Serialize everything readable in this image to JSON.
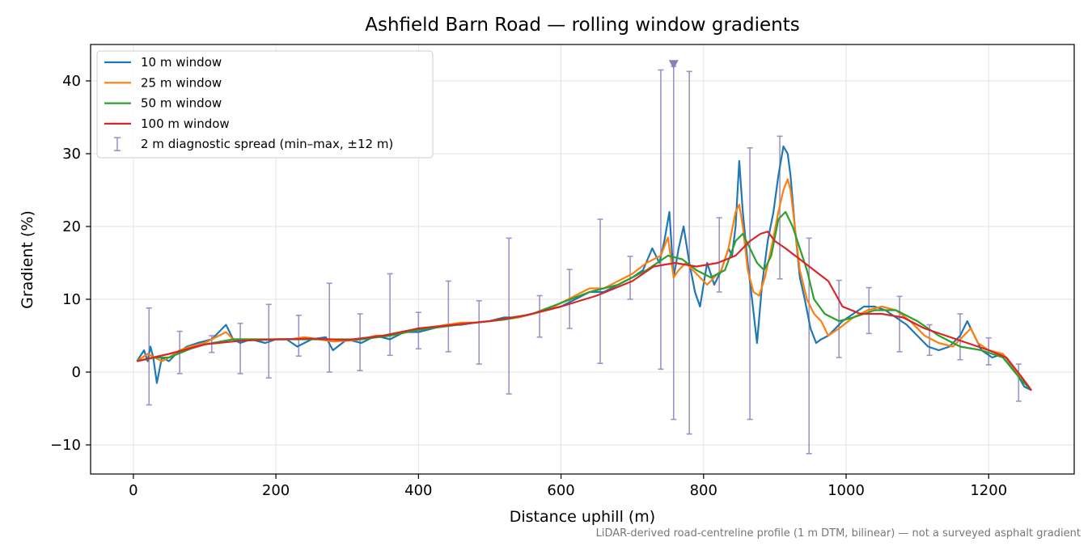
{
  "chart_data": {
    "type": "line",
    "title": "Ashfield Barn Road — rolling window gradients",
    "xlabel": "Distance uphill (m)",
    "ylabel": "Gradient (%)",
    "xlim": [
      -60,
      1320
    ],
    "ylim": [
      -14,
      45
    ],
    "xticks": [
      0,
      200,
      400,
      600,
      800,
      1000,
      1200
    ],
    "yticks": [
      -10,
      0,
      10,
      20,
      30,
      40
    ],
    "xtick_labels": [
      "0",
      "200",
      "400",
      "600",
      "800",
      "1000",
      "1200"
    ],
    "ytick_labels": [
      "−10",
      "0",
      "10",
      "20",
      "30",
      "40"
    ],
    "grid": true,
    "legend_position": "top-left",
    "footnote": "LiDAR-derived road-centreline profile (1 m DTM, bilinear) — not a surveyed asphalt gradient",
    "series": [
      {
        "name": "10 m window",
        "color": "#1f77b4",
        "x": [
          5,
          15,
          20,
          24,
          28,
          33,
          40,
          50,
          60,
          75,
          90,
          110,
          130,
          140,
          150,
          165,
          185,
          200,
          215,
          230,
          250,
          270,
          280,
          300,
          320,
          340,
          360,
          380,
          400,
          420,
          440,
          460,
          480,
          500,
          520,
          540,
          560,
          580,
          600,
          620,
          640,
          660,
          680,
          700,
          715,
          728,
          738,
          745,
          752,
          758,
          765,
          772,
          780,
          788,
          795,
          805,
          815,
          825,
          835,
          840,
          845,
          850,
          855,
          862,
          868,
          875,
          882,
          890,
          898,
          905,
          912,
          918,
          922,
          928,
          935,
          942,
          950,
          958,
          965,
          975,
          985,
          995,
          1010,
          1025,
          1040,
          1055,
          1070,
          1085,
          1100,
          1115,
          1130,
          1145,
          1160,
          1170,
          1180,
          1190,
          1205,
          1220,
          1235,
          1250,
          1260
        ],
        "y": [
          1.5,
          3,
          1.5,
          3.5,
          2,
          -1.5,
          2,
          1.5,
          2.5,
          3.5,
          4,
          4.5,
          6.5,
          4.5,
          4,
          4.5,
          4,
          4.5,
          4.5,
          3.5,
          4.5,
          4.8,
          3,
          4.5,
          4,
          5,
          4.5,
          5.5,
          5.5,
          6,
          6.5,
          6.5,
          6.8,
          7,
          7.5,
          7.5,
          8,
          8.5,
          9,
          10,
          11,
          11,
          12,
          13,
          14,
          17,
          15,
          18,
          22,
          13,
          17,
          20,
          15,
          11,
          9,
          15,
          12,
          14,
          17,
          16,
          20,
          29,
          22,
          15,
          10,
          4,
          12,
          18,
          22,
          27,
          31,
          30,
          27,
          20,
          13,
          10,
          6,
          4,
          4.5,
          5,
          6,
          7,
          8,
          9,
          9,
          8.5,
          7.5,
          6.5,
          5,
          3.5,
          3,
          3.5,
          5,
          7,
          5,
          3,
          2,
          2.5,
          0.5,
          -2,
          -2.5
        ]
      },
      {
        "name": "25 m window",
        "color": "#ff7f0e",
        "x": [
          5,
          20,
          30,
          40,
          50,
          65,
          80,
          100,
          130,
          140,
          160,
          180,
          200,
          220,
          240,
          260,
          280,
          300,
          320,
          340,
          360,
          380,
          400,
          420,
          440,
          460,
          480,
          500,
          520,
          540,
          560,
          580,
          600,
          620,
          640,
          660,
          680,
          700,
          720,
          740,
          750,
          758,
          765,
          775,
          785,
          795,
          805,
          815,
          825,
          835,
          845,
          850,
          855,
          862,
          870,
          878,
          886,
          895,
          905,
          912,
          918,
          922,
          928,
          935,
          945,
          955,
          965,
          975,
          990,
          1010,
          1030,
          1050,
          1070,
          1090,
          1110,
          1130,
          1150,
          1165,
          1175,
          1185,
          1200,
          1220,
          1240,
          1255,
          1260
        ],
        "y": [
          1.5,
          2.5,
          2,
          1.5,
          2,
          3,
          3.5,
          4,
          5.5,
          4.5,
          4.5,
          4.5,
          4.5,
          4.5,
          4.8,
          4.5,
          4.2,
          4.3,
          4.5,
          5,
          5,
          5.5,
          6,
          6.2,
          6.5,
          6.8,
          6.8,
          7,
          7.2,
          7.5,
          8,
          8.5,
          9.5,
          10.5,
          11.5,
          11.5,
          12.5,
          13.5,
          15,
          16,
          18.5,
          13,
          14,
          15,
          14,
          13,
          12,
          13,
          14,
          17,
          22,
          23,
          20,
          14,
          11,
          10.5,
          13,
          17,
          22,
          25,
          26.5,
          25,
          20,
          14,
          10,
          8,
          7,
          5,
          6,
          7.5,
          8.5,
          9,
          8.5,
          7,
          5,
          4,
          3.5,
          5,
          6,
          4,
          3,
          2.5,
          0,
          -2,
          -2.5
        ]
      },
      {
        "name": "50 m window",
        "color": "#2ca02c",
        "x": [
          5,
          30,
          50,
          80,
          100,
          140,
          200,
          260,
          320,
          360,
          400,
          440,
          480,
          520,
          560,
          600,
          640,
          680,
          720,
          750,
          770,
          790,
          810,
          830,
          845,
          855,
          865,
          875,
          885,
          895,
          905,
          915,
          925,
          935,
          945,
          955,
          970,
          990,
          1010,
          1040,
          1070,
          1100,
          1130,
          1160,
          1190,
          1220,
          1245,
          1260
        ],
        "y": [
          1.5,
          2,
          2,
          3.2,
          3.8,
          4.5,
          4.5,
          4.5,
          4.5,
          5,
          5.8,
          6.3,
          6.8,
          7.2,
          8,
          9.5,
          11,
          12,
          14,
          16,
          15.5,
          14,
          13,
          14,
          18,
          19,
          17,
          15,
          14,
          16,
          21,
          22,
          20,
          17,
          14,
          10,
          8,
          7,
          7.5,
          8.5,
          8.5,
          7,
          5,
          3.5,
          3,
          2,
          -1,
          -2.5
        ]
      },
      {
        "name": "100 m window",
        "color": "#d62728",
        "x": [
          5,
          50,
          100,
          150,
          200,
          250,
          300,
          350,
          400,
          450,
          500,
          550,
          600,
          650,
          700,
          730,
          760,
          790,
          820,
          845,
          865,
          880,
          890,
          900,
          915,
          935,
          955,
          975,
          995,
          1020,
          1050,
          1080,
          1110,
          1140,
          1170,
          1200,
          1225,
          1245,
          1260
        ],
        "y": [
          1.5,
          2.5,
          3.8,
          4.3,
          4.5,
          4.6,
          4.4,
          5,
          6,
          6.5,
          7,
          7.8,
          9,
          10.5,
          12.5,
          14.5,
          15,
          14.5,
          15,
          16,
          18,
          19,
          19.3,
          18,
          17,
          15.5,
          14,
          12.5,
          9,
          8,
          8,
          7.5,
          6,
          5,
          4,
          3,
          2,
          -0.5,
          -2.5
        ]
      }
    ],
    "error_bars": {
      "name": "2 m diagnostic spread (min–max, ±12 m)",
      "color": "#9e93c7",
      "x": [
        22,
        65,
        110,
        150,
        190,
        232,
        275,
        318,
        360,
        400,
        442,
        485,
        527,
        570,
        612,
        655,
        697,
        740,
        758,
        780,
        822,
        865,
        907,
        948,
        990,
        1032,
        1075,
        1117,
        1160,
        1200,
        1242
      ],
      "low": [
        -4.5,
        -0.2,
        2.7,
        -0.2,
        -0.8,
        2.2,
        0,
        0.2,
        2.3,
        3.2,
        2.8,
        1.1,
        -3,
        4.8,
        6,
        1.2,
        10,
        0.4,
        -6.5,
        -8.5,
        11,
        -6.5,
        12.8,
        -11.2,
        2,
        5.3,
        2.8,
        2.3,
        1.7,
        1,
        -4
      ],
      "high": [
        8.8,
        5.6,
        5,
        6.7,
        9.3,
        7.8,
        12.2,
        8,
        13.5,
        8.2,
        12.5,
        9.8,
        18.4,
        10.5,
        14.1,
        21,
        15.9,
        41.5,
        42,
        41.3,
        21.2,
        30.8,
        32.4,
        18.4,
        12.6,
        11.6,
        10.4,
        6.5,
        8,
        4.7,
        1.1
      ],
      "clipped_marker": {
        "x": 758,
        "y": 42.2
      }
    }
  }
}
